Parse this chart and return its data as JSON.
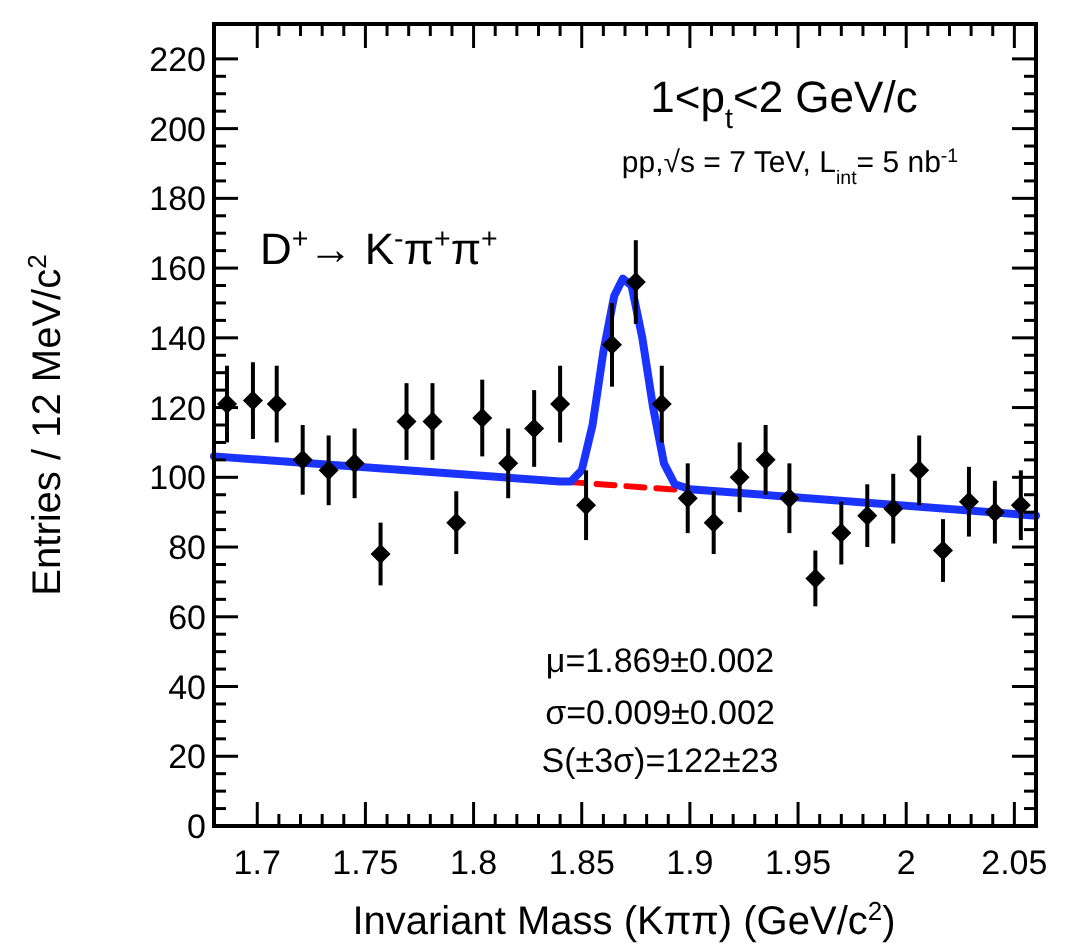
{
  "chart_data": {
    "type": "scatter",
    "title": "1<p$_{t}$<2 GeV/c",
    "subtitle": "pp,√s = 7 TeV, L$_{int}$= 5 nb$^{-1}$",
    "xlabel": "Invariant Mass (Kππ) (GeV/c$^{2}$)",
    "ylabel": "Entries / 12 MeV/c$^{2}$",
    "annotations": [
      "D$^{+}$→ K$^{-}$π$^{+}$π$^{+}$",
      "μ=1.869±0.002",
      "σ=0.009±0.002",
      "S(±3σ)=122±23"
    ],
    "xlim": [
      1.68,
      2.06
    ],
    "ylim": [
      0,
      230
    ],
    "xticks": [
      1.7,
      1.75,
      1.8,
      1.85,
      1.9,
      1.95,
      2,
      2.05
    ],
    "yticks": [
      0,
      20,
      40,
      60,
      80,
      100,
      120,
      140,
      160,
      180,
      200,
      220
    ],
    "grid": false,
    "series": [
      {
        "type": "line",
        "color": "#ff0000",
        "line_style": "dashed",
        "x": [
          1.843,
          1.897
        ],
        "values": [
          98.7,
          96.3
        ]
      },
      {
        "type": "line",
        "color": "#1a33ff",
        "line_style": "solid",
        "x": [
          1.68,
          1.84,
          1.845,
          1.85,
          1.855,
          1.86,
          1.865,
          1.869,
          1.873,
          1.878,
          1.883,
          1.888,
          1.893,
          1.9,
          2.06
        ],
        "values": [
          106,
          98.8,
          98.8,
          102,
          115,
          136,
          152,
          157,
          155,
          140,
          120,
          104,
          98,
          96.6,
          89
        ]
      },
      {
        "color": "#000000",
        "marker": "diamond",
        "x": [
          1.686,
          1.698,
          1.709,
          1.721,
          1.733,
          1.745,
          1.757,
          1.769,
          1.781,
          1.792,
          1.804,
          1.816,
          1.828,
          1.84,
          1.852,
          1.864,
          1.875,
          1.887,
          1.899,
          1.911,
          1.923,
          1.935,
          1.946,
          1.958,
          1.97,
          1.982,
          1.994,
          2.006,
          2.017,
          2.029,
          2.041,
          2.053
        ],
        "values": [
          121,
          122,
          121,
          105,
          102,
          104,
          78,
          116,
          116,
          87,
          117,
          104,
          114,
          121,
          92,
          138,
          156,
          121,
          94,
          87,
          100,
          105,
          94,
          71,
          84,
          89,
          91,
          102,
          79,
          93,
          90,
          92
        ],
        "errors": [
          11,
          11,
          11,
          10,
          10,
          10,
          9,
          11,
          11,
          9,
          11,
          10,
          11,
          11,
          10,
          12,
          12,
          11,
          10,
          9,
          10,
          10,
          10,
          8,
          9,
          9,
          10,
          10,
          9,
          10,
          9,
          10
        ]
      }
    ]
  }
}
